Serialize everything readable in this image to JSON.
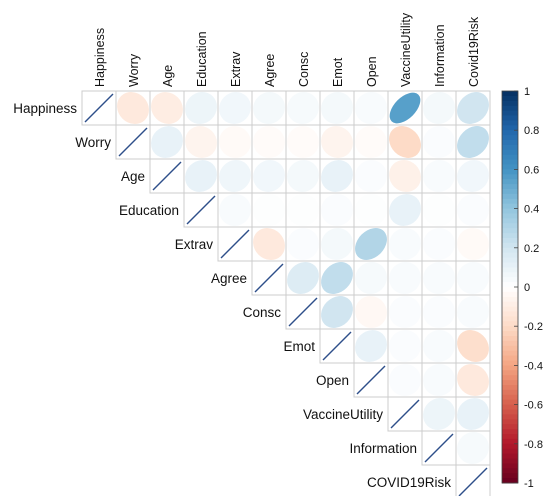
{
  "chart_data": {
    "type": "heatmap",
    "variables": [
      "Happiness",
      "Worry",
      "Age",
      "Education",
      "Extrav",
      "Agree",
      "Consc",
      "Emot",
      "Open",
      "VaccineUtility",
      "Information",
      "Covid19Risk"
    ],
    "column_labels": [
      "Happiness",
      "Worry",
      "Age",
      "Education",
      "Extrav",
      "Agree",
      "Consc",
      "Emot",
      "Open",
      "VaccineUtility",
      "Information",
      "Covid19Risk"
    ],
    "row_labels": [
      "Happiness",
      "Worry",
      "Age",
      "Education",
      "Extrav",
      "Agree",
      "Consc",
      "Emot",
      "Open",
      "VaccineUtility",
      "Information",
      "COVID19Risk"
    ],
    "shape": "upper-triangle ellipses",
    "matrix": [
      [
        1,
        -0.12,
        -0.1,
        0.08,
        0.06,
        0.05,
        0.04,
        0.05,
        0.03,
        0.55,
        0.05,
        0.2
      ],
      [
        null,
        1,
        0.1,
        -0.06,
        -0.03,
        -0.02,
        -0.02,
        -0.06,
        -0.02,
        -0.2,
        0.02,
        0.25
      ],
      [
        null,
        null,
        1,
        0.1,
        0.07,
        0.06,
        0.05,
        0.1,
        0.02,
        -0.08,
        0.03,
        0.06
      ],
      [
        null,
        null,
        null,
        1,
        0.03,
        0.01,
        0.01,
        0.02,
        0.01,
        0.1,
        0.01,
        0.02
      ],
      [
        null,
        null,
        null,
        null,
        1,
        -0.12,
        0.02,
        0.05,
        0.3,
        0.03,
        0.02,
        -0.03
      ],
      [
        null,
        null,
        null,
        null,
        null,
        1,
        0.15,
        0.25,
        0.04,
        0.03,
        0.03,
        0.03
      ],
      [
        null,
        null,
        null,
        null,
        null,
        null,
        1,
        0.2,
        -0.04,
        0.02,
        0.02,
        0.03
      ],
      [
        null,
        null,
        null,
        null,
        null,
        null,
        null,
        1,
        0.1,
        0.02,
        0.03,
        -0.18
      ],
      [
        null,
        null,
        null,
        null,
        null,
        null,
        null,
        null,
        1,
        0.02,
        0.03,
        -0.12
      ],
      [
        null,
        null,
        null,
        null,
        null,
        null,
        null,
        null,
        null,
        1,
        0.08,
        0.1
      ],
      [
        null,
        null,
        null,
        null,
        null,
        null,
        null,
        null,
        null,
        null,
        1,
        0.04
      ],
      [
        null,
        null,
        null,
        null,
        null,
        null,
        null,
        null,
        null,
        null,
        null,
        1
      ]
    ],
    "colorbar": {
      "ticks": [
        "1",
        "0.8",
        "0.6",
        "0.4",
        "0.2",
        "0",
        "-0.2",
        "-0.4",
        "-0.6",
        "-0.8",
        "-1"
      ],
      "range": [
        -1,
        1
      ],
      "colors": [
        "#67001F",
        "#B2182B",
        "#D6604D",
        "#F4A582",
        "#FDDBC7",
        "#FFFFFF",
        "#D1E5F0",
        "#92C5DE",
        "#4393C3",
        "#2166AC",
        "#053061"
      ]
    },
    "colors": {
      "grid": "#cccccc",
      "diagonal_line": "#2d4f8a"
    }
  }
}
